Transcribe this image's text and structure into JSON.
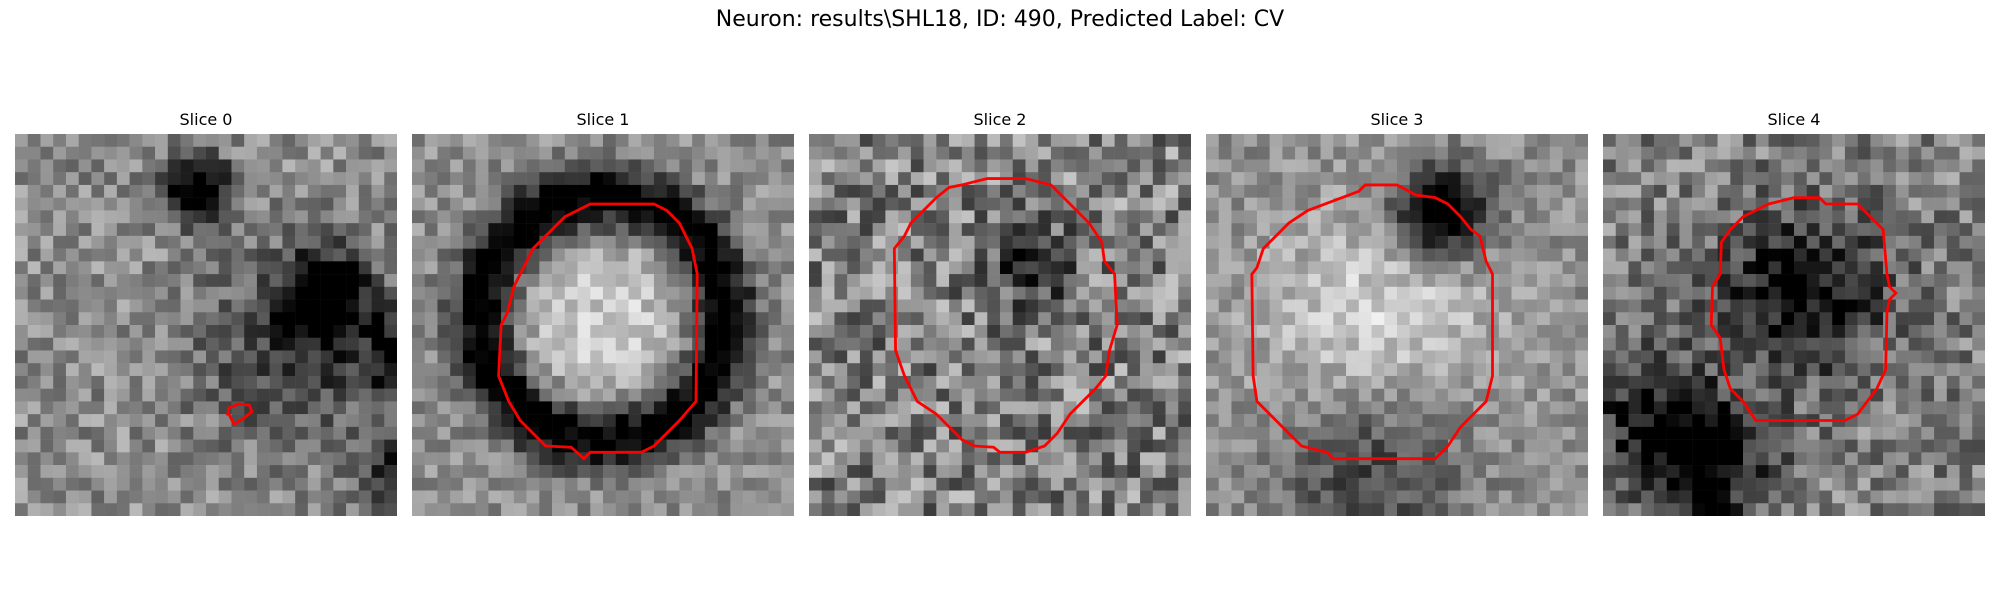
{
  "figure": {
    "title": "Neuron: results\\SHL18, ID: 490, Predicted Label: CV"
  },
  "contour_color": "#ff0000",
  "panels": [
    {
      "title": "Slice 0",
      "contour": [
        [
          16.8,
          22.0
        ],
        [
          17.2,
          22.8
        ],
        [
          18.0,
          22.3
        ],
        [
          18.6,
          21.8
        ],
        [
          18.4,
          21.3
        ],
        [
          17.6,
          21.2
        ],
        [
          16.8,
          21.5
        ],
        [
          16.7,
          22.0
        ]
      ],
      "blobs": [
        {
          "cx": 14.5,
          "cy": 4.5,
          "r": 1.8,
          "d": 0.8
        },
        {
          "cx": 24.5,
          "cy": 12.5,
          "r": 2.2,
          "d": 0.75
        },
        {
          "cx": 31.5,
          "cy": 17.5,
          "r": 2.5,
          "d": 0.65
        },
        {
          "cx": 30.0,
          "cy": 27.0,
          "r": 2.0,
          "d": 0.5
        },
        {
          "cx": 22.0,
          "cy": 17.0,
          "r": 5.0,
          "d": 0.35
        }
      ],
      "base": 0.55,
      "noise": 0.18
    },
    {
      "title": "Slice 1",
      "contour": [
        [
          15.0,
          5.5
        ],
        [
          19.0,
          5.5
        ],
        [
          20.0,
          6.0
        ],
        [
          21.0,
          7.0
        ],
        [
          22.0,
          9.0
        ],
        [
          22.4,
          11.0
        ],
        [
          22.3,
          21.0
        ],
        [
          21.0,
          22.5
        ],
        [
          19.0,
          24.5
        ],
        [
          18.0,
          25.0
        ],
        [
          14.0,
          25.0
        ],
        [
          13.5,
          25.5
        ],
        [
          12.5,
          24.6
        ],
        [
          10.5,
          24.5
        ],
        [
          9.5,
          23.5
        ],
        [
          8.5,
          22.5
        ],
        [
          7.6,
          21.0
        ],
        [
          6.8,
          19.0
        ],
        [
          7.0,
          15.0
        ],
        [
          7.5,
          14.0
        ],
        [
          8.0,
          12.0
        ],
        [
          9.0,
          10.0
        ],
        [
          9.5,
          9.0
        ],
        [
          10.5,
          8.0
        ],
        [
          12.0,
          6.5
        ],
        [
          14.0,
          5.5
        ]
      ],
      "ring": {
        "cx": 15.0,
        "cy": 14.5,
        "r": 9.5,
        "w": 1.8,
        "d": 0.7
      },
      "blobs": [
        {
          "cx": 15.0,
          "cy": 15.0,
          "r": 6.0,
          "d": -0.25
        }
      ],
      "base": 0.55,
      "noise": 0.15
    },
    {
      "title": "Slice 2",
      "contour": [
        [
          12.0,
          4.0
        ],
        [
          14.0,
          3.5
        ],
        [
          17.0,
          3.5
        ],
        [
          19.0,
          4.0
        ],
        [
          20.0,
          5.0
        ],
        [
          21.0,
          6.0
        ],
        [
          22.0,
          7.0
        ],
        [
          23.0,
          8.5
        ],
        [
          23.2,
          10.0
        ],
        [
          24.0,
          11.0
        ],
        [
          24.2,
          15.0
        ],
        [
          23.6,
          17.0
        ],
        [
          23.3,
          19.0
        ],
        [
          22.5,
          20.0
        ],
        [
          21.5,
          21.0
        ],
        [
          20.5,
          22.0
        ],
        [
          19.5,
          23.5
        ],
        [
          18.5,
          24.5
        ],
        [
          17.0,
          25.0
        ],
        [
          15.0,
          25.0
        ],
        [
          14.5,
          24.6
        ],
        [
          13.0,
          24.5
        ],
        [
          12.0,
          24.0
        ],
        [
          11.0,
          23.0
        ],
        [
          10.0,
          22.0
        ],
        [
          8.5,
          21.0
        ],
        [
          7.5,
          19.0
        ],
        [
          6.8,
          17.0
        ],
        [
          6.7,
          9.0
        ],
        [
          7.5,
          8.0
        ],
        [
          8.0,
          7.0
        ],
        [
          9.0,
          6.0
        ],
        [
          10.0,
          5.0
        ],
        [
          11.0,
          4.2
        ]
      ],
      "blobs": [
        {
          "cx": 17.5,
          "cy": 10.0,
          "r": 2.0,
          "d": 0.5
        }
      ],
      "base": 0.5,
      "noise": 0.28
    },
    {
      "title": "Slice 3",
      "contour": [
        [
          8.0,
          6.0
        ],
        [
          12.0,
          4.5
        ],
        [
          12.5,
          4.0
        ],
        [
          15.0,
          4.0
        ],
        [
          16.5,
          4.8
        ],
        [
          18.0,
          5.0
        ],
        [
          19.0,
          5.5
        ],
        [
          20.0,
          6.5
        ],
        [
          20.8,
          7.5
        ],
        [
          21.5,
          8.0
        ],
        [
          22.0,
          10.0
        ],
        [
          22.5,
          11.0
        ],
        [
          22.5,
          19.0
        ],
        [
          22.0,
          21.0
        ],
        [
          21.0,
          22.0
        ],
        [
          20.0,
          23.0
        ],
        [
          19.0,
          24.5
        ],
        [
          18.0,
          25.5
        ],
        [
          10.0,
          25.5
        ],
        [
          9.5,
          25.0
        ],
        [
          7.5,
          24.5
        ],
        [
          6.5,
          23.5
        ],
        [
          5.0,
          22.0
        ],
        [
          4.0,
          21.0
        ],
        [
          3.7,
          19.0
        ],
        [
          3.6,
          11.0
        ],
        [
          4.0,
          10.5
        ],
        [
          4.5,
          9.0
        ],
        [
          5.5,
          8.0
        ],
        [
          6.5,
          7.0
        ]
      ],
      "blobs": [
        {
          "cx": 18.5,
          "cy": 6.0,
          "r": 2.5,
          "d": 0.8
        },
        {
          "cx": 13.5,
          "cy": 15.5,
          "r": 6.5,
          "d": -0.3
        },
        {
          "cx": 13.0,
          "cy": 25.5,
          "r": 5.0,
          "d": 0.35
        }
      ],
      "base": 0.55,
      "noise": 0.14
    },
    {
      "title": "Slice 4",
      "contour": [
        [
          13.0,
          5.5
        ],
        [
          15.0,
          5.0
        ],
        [
          17.0,
          5.0
        ],
        [
          17.5,
          5.5
        ],
        [
          20.0,
          5.5
        ],
        [
          21.0,
          6.5
        ],
        [
          22.0,
          7.5
        ],
        [
          22.3,
          11.0
        ],
        [
          22.5,
          12.0
        ],
        [
          23.0,
          12.5
        ],
        [
          22.5,
          13.0
        ],
        [
          22.3,
          14.0
        ],
        [
          22.2,
          18.5
        ],
        [
          21.5,
          20.0
        ],
        [
          20.0,
          22.0
        ],
        [
          19.0,
          22.5
        ],
        [
          12.0,
          22.5
        ],
        [
          11.0,
          21.0
        ],
        [
          10.0,
          20.0
        ],
        [
          9.5,
          18.5
        ],
        [
          9.2,
          16.0
        ],
        [
          8.5,
          15.0
        ],
        [
          8.6,
          12.0
        ],
        [
          9.2,
          11.0
        ],
        [
          9.3,
          8.5
        ],
        [
          10.0,
          7.5
        ],
        [
          11.0,
          6.5
        ]
      ],
      "blobs": [
        {
          "cx": 15.5,
          "cy": 12.5,
          "r": 4.5,
          "d": 0.5
        },
        {
          "cx": 8.0,
          "cy": 26.0,
          "r": 3.5,
          "d": 0.55
        },
        {
          "cx": 3.5,
          "cy": 22.0,
          "r": 3.5,
          "d": 0.35
        }
      ],
      "base": 0.5,
      "noise": 0.22
    }
  ]
}
